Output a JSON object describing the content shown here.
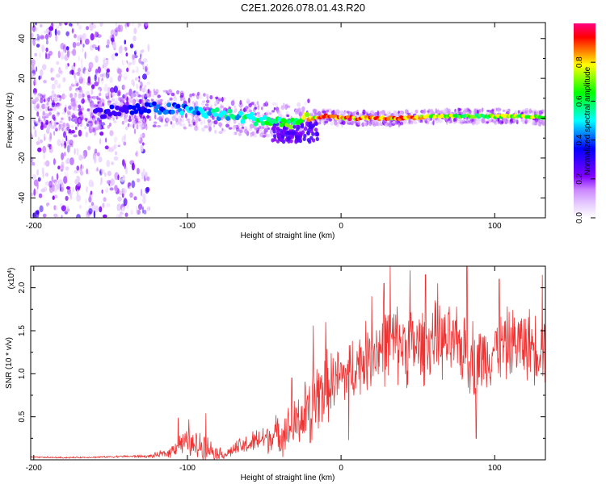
{
  "figure_title": "C2E1.2026.078.01.43.R20",
  "chart_data": [
    {
      "type": "heatmap",
      "title": "C2E1.2026.078.01.43.R20",
      "xlabel": "Height of straight line (km)",
      "ylabel": "Frequency (Hz)",
      "xlim": [
        -202,
        133
      ],
      "ylim": [
        -50,
        48
      ],
      "x_ticks": [
        -200,
        -100,
        0,
        100
      ],
      "y_ticks": [
        -40,
        -20,
        0,
        20,
        40
      ],
      "colorbar": {
        "label": "Normalized spectral amplitude",
        "range": [
          0.0,
          1.0
        ],
        "ticks": [
          0.0,
          0.2,
          0.4,
          0.6,
          0.8
        ],
        "tick_labels": [
          "0.0",
          "0.2",
          "0.4",
          "0.6",
          "0.8"
        ],
        "colormap": [
          "#ffffff",
          "#e6ccff",
          "#cc88ff",
          "#8000ff",
          "#4000ff",
          "#0000ff",
          "#0080ff",
          "#00ffff",
          "#00ff80",
          "#00ff00",
          "#80ff00",
          "#ffff00",
          "#ff8000",
          "#ff0000",
          "#ff0080"
        ]
      },
      "ridge": {
        "x": [
          -160,
          -140,
          -120,
          -100,
          -80,
          -60,
          -40,
          -30,
          -20,
          -10,
          0,
          20,
          40,
          60,
          80,
          100,
          120,
          133
        ],
        "y": [
          3,
          4,
          5,
          4,
          2,
          0,
          -2,
          -2,
          0,
          1,
          0,
          0,
          0,
          1,
          1,
          1,
          1,
          0
        ],
        "amplitude": [
          0.3,
          0.35,
          0.4,
          0.5,
          0.55,
          0.6,
          0.65,
          0.7,
          0.8,
          0.95,
          0.95,
          0.95,
          0.95,
          0.8,
          0.7,
          0.75,
          0.8,
          0.8
        ]
      },
      "noise_region": {
        "x_range": [
          -202,
          -125
        ],
        "y_range": [
          -50,
          48
        ]
      },
      "scatter_cluster": {
        "x_range": [
          -45,
          -15
        ],
        "y_range": [
          -12,
          -2
        ]
      }
    },
    {
      "type": "line",
      "xlabel": "Height of straight line (km)",
      "ylabel": "SNR (10 * v/v)",
      "y_multiplier": "(x10",
      "y_multiplier_exp": "4",
      "y_multiplier_close": ")",
      "xlim": [
        -202,
        133
      ],
      "ylim": [
        0,
        22500
      ],
      "x_ticks": [
        -200,
        -100,
        0,
        100
      ],
      "y_ticks": [
        5000,
        10000,
        15000,
        20000
      ],
      "y_tick_labels": [
        "0.5",
        "1.0",
        "1.5",
        "2.0"
      ],
      "color": "#ee3333",
      "series": [
        {
          "name": "SNR",
          "x": [
            -202,
            -180,
            -160,
            -140,
            -125,
            -112,
            -105,
            -100,
            -95,
            -90,
            -85,
            -80,
            -75,
            -70,
            -60,
            -50,
            -40,
            -30,
            -25,
            -20,
            -15,
            -10,
            -5,
            0,
            10,
            20,
            30,
            40,
            50,
            60,
            70,
            80,
            88,
            95,
            100,
            110,
            120,
            133
          ],
          "mean": [
            300,
            250,
            300,
            400,
            400,
            800,
            2000,
            1800,
            1500,
            1800,
            1200,
            800,
            600,
            1200,
            1800,
            2500,
            3000,
            4000,
            5000,
            6000,
            7500,
            8500,
            9000,
            9500,
            11000,
            12500,
            13500,
            13500,
            13000,
            14000,
            13500,
            13000,
            11500,
            12000,
            13000,
            13500,
            13500,
            13000
          ],
          "amp": [
            100,
            100,
            100,
            150,
            200,
            700,
            1500,
            2000,
            2000,
            2200,
            1400,
            900,
            600,
            1000,
            1500,
            2000,
            2800,
            3500,
            4500,
            5000,
            5500,
            5000,
            4500,
            4500,
            4500,
            5000,
            5500,
            5500,
            5500,
            5000,
            5000,
            5000,
            5500,
            4500,
            4500,
            5000,
            5000,
            5000
          ],
          "peaks": [
            {
              "x": -106,
              "y": 4900
            },
            {
              "x": -99,
              "y": 4700
            },
            {
              "x": -88,
              "y": 5400
            },
            {
              "x": -32,
              "y": 9500
            },
            {
              "x": -20,
              "y": 11500
            },
            {
              "x": -18,
              "y": 15600
            },
            {
              "x": -10,
              "y": 16000
            },
            {
              "x": 20,
              "y": 19000
            },
            {
              "x": 28,
              "y": 20500
            },
            {
              "x": 32,
              "y": 22500
            },
            {
              "x": 45,
              "y": 22000
            },
            {
              "x": 55,
              "y": 21500
            },
            {
              "x": 63,
              "y": 20500
            },
            {
              "x": 82,
              "y": 23000
            },
            {
              "x": 103,
              "y": 21000
            },
            {
              "x": 131,
              "y": 21500
            }
          ],
          "dips": [
            {
              "x": 88,
              "y": 2500
            },
            {
              "x": 5,
              "y": 2300
            },
            {
              "x": -20,
              "y": 2000
            }
          ]
        }
      ]
    }
  ]
}
